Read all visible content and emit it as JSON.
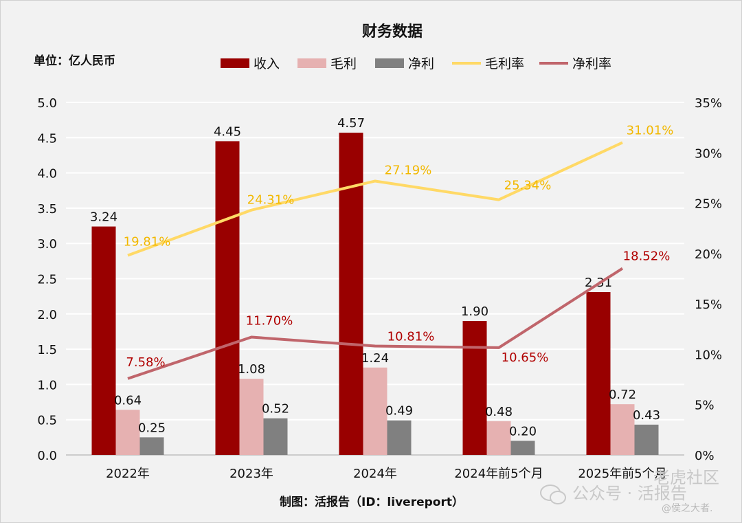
{
  "chart_data": {
    "type": "bar",
    "title": "财务数据",
    "unit_label": "单位：亿人民币",
    "categories": [
      "2022年",
      "2023年",
      "2024年",
      "2024年前5个月",
      "2025年前5个月"
    ],
    "bar_series": [
      {
        "name": "收入",
        "color": "#990000",
        "values": [
          3.24,
          4.45,
          4.57,
          1.9,
          2.31
        ],
        "labels": [
          "3.24",
          "4.45",
          "4.57",
          "1.90",
          "2.31"
        ]
      },
      {
        "name": "毛利",
        "color": "#e6b1b1",
        "values": [
          0.64,
          1.08,
          1.24,
          0.48,
          0.72
        ],
        "labels": [
          "0.64",
          "1.08",
          "1.24",
          "0.48",
          "0.72"
        ]
      },
      {
        "name": "净利",
        "color": "#808080",
        "values": [
          0.25,
          0.52,
          0.49,
          0.2,
          0.43
        ],
        "labels": [
          "0.25",
          "0.52",
          "0.49",
          "0.20",
          "0.43"
        ]
      }
    ],
    "line_series": [
      {
        "name": "毛利率",
        "color": "#ffd966",
        "label_color": "#f2b800",
        "values": [
          19.81,
          24.31,
          27.19,
          25.34,
          31.01
        ],
        "labels": [
          "19.81%",
          "24.31%",
          "27.19%",
          "25.34%",
          "31.01%"
        ]
      },
      {
        "name": "净利率",
        "color": "#c0656b",
        "label_color": "#b00000",
        "values": [
          7.58,
          11.7,
          10.81,
          10.65,
          18.52
        ],
        "labels": [
          "7.58%",
          "11.70%",
          "10.81%",
          "10.65%",
          "18.52%"
        ]
      }
    ],
    "y_left": {
      "min": 0,
      "max": 5.0,
      "step": 0.5,
      "ticks": [
        "0.0",
        "0.5",
        "1.0",
        "1.5",
        "2.0",
        "2.5",
        "3.0",
        "3.5",
        "4.0",
        "4.5",
        "5.0"
      ]
    },
    "y_right": {
      "min": 0,
      "max": 35,
      "step": 5,
      "ticks": [
        "0%",
        "5%",
        "10%",
        "15%",
        "20%",
        "25%",
        "30%",
        "35%"
      ]
    },
    "grid": true,
    "legend_position": "top",
    "source": "制图：活报告（ID：livereport）"
  },
  "watermark": {
    "main": "公众号 · 活报告",
    "corner": "老虎社区",
    "handle": "@侯之大者."
  }
}
